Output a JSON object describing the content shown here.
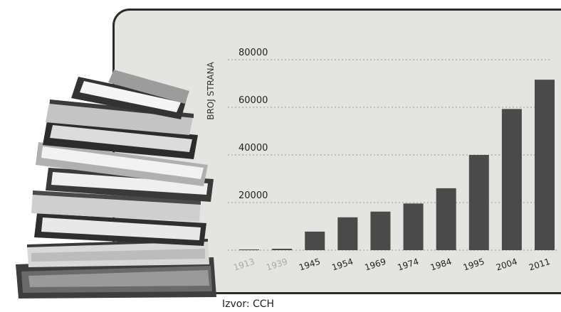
{
  "chart_data": {
    "type": "bar",
    "categories": [
      "1913",
      "1939",
      "1945",
      "1954",
      "1969",
      "1974",
      "1984",
      "1995",
      "2004",
      "2011"
    ],
    "values": [
      300,
      600,
      7800,
      13800,
      16200,
      19600,
      26000,
      40000,
      59300,
      71600
    ],
    "xlabel": "",
    "ylabel": "BROJ STRANA",
    "ylim": [
      0,
      80000
    ],
    "yticks": [
      20000,
      40000,
      60000,
      80000
    ],
    "grid": true,
    "bar_color": "#4a4a4a",
    "faded_tick_color": "#aaaaaa"
  },
  "source": "Izvor: CCH"
}
